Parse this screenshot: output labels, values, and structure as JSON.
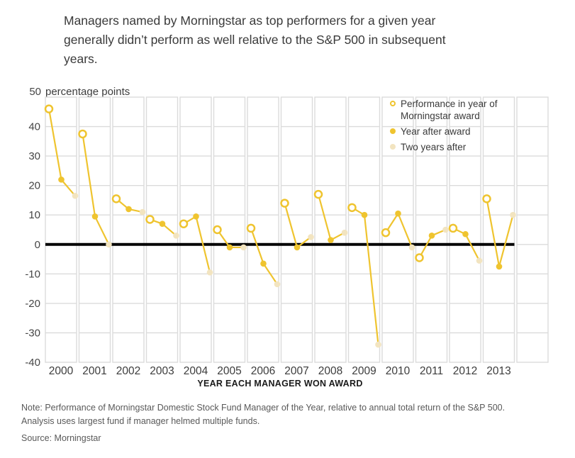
{
  "header": {
    "title": "Managers named by Morningstar as top performers for a given year\ngenerally didn’t perform as well relative to the S&P 500 in subsequent\nyears."
  },
  "chart_data": {
    "type": "line",
    "title": "Managers named by Morningstar as top performers for a given year generally didn’t perform as well relative to the S&P 500 in subsequent years.",
    "top_tick": "50",
    "unit_label": "percentage points",
    "xlabel": "YEAR EACH MANAGER WON AWARD",
    "ylabel": "percentage points",
    "ylim": [
      -40,
      50
    ],
    "y_ticks": [
      40,
      30,
      20,
      10,
      0,
      -10,
      -20,
      -30,
      -40
    ],
    "grid": "light-gray per-year panel boxes with horizontal lines every 10 points; heavy black baseline at 0",
    "legend_position": "top-right inside plot",
    "categories": [
      "2000",
      "2001",
      "2002",
      "2003",
      "2004",
      "2005",
      "2006",
      "2007",
      "2008",
      "2009",
      "2010",
      "2011",
      "2012",
      "2013"
    ],
    "series": [
      {
        "name": "Performance in year of Morningstar award",
        "marker": "open-circle",
        "values": [
          46,
          37.5,
          15.5,
          8.5,
          7,
          5,
          5.5,
          14,
          17,
          12.5,
          4,
          -4.5,
          5.5,
          15.5
        ]
      },
      {
        "name": "Year after award",
        "marker": "filled-dot",
        "values": [
          22,
          9.5,
          12,
          7,
          9.5,
          -1,
          -6.5,
          -1,
          1.5,
          10,
          10.5,
          3,
          3.5,
          -7.5
        ]
      },
      {
        "name": "Two years after",
        "marker": "pale-dot",
        "values": [
          16.5,
          0,
          11,
          3,
          -9.5,
          -1,
          -13.5,
          2.5,
          4,
          -34,
          -1,
          5,
          -5.5,
          10
        ]
      }
    ],
    "legend": [
      {
        "label": "Performance in year of\nMorningstar award",
        "marker": "open-circle"
      },
      {
        "label": "Year after award",
        "marker": "filled-dot"
      },
      {
        "label": "Two years after",
        "marker": "pale-dot"
      }
    ],
    "colors": {
      "accent": "#EFC42F",
      "pale": "#F2E4C0",
      "grid": "#DBDBDB",
      "zero_line": "#000000"
    }
  },
  "footer": {
    "note": "Note: Performance of Morningstar Domestic Stock Fund Manager of the Year, relative to annual total return of the S&P 500.\nAnalysis uses largest fund if manager helmed multiple funds.",
    "source": "Source: Morningstar"
  }
}
